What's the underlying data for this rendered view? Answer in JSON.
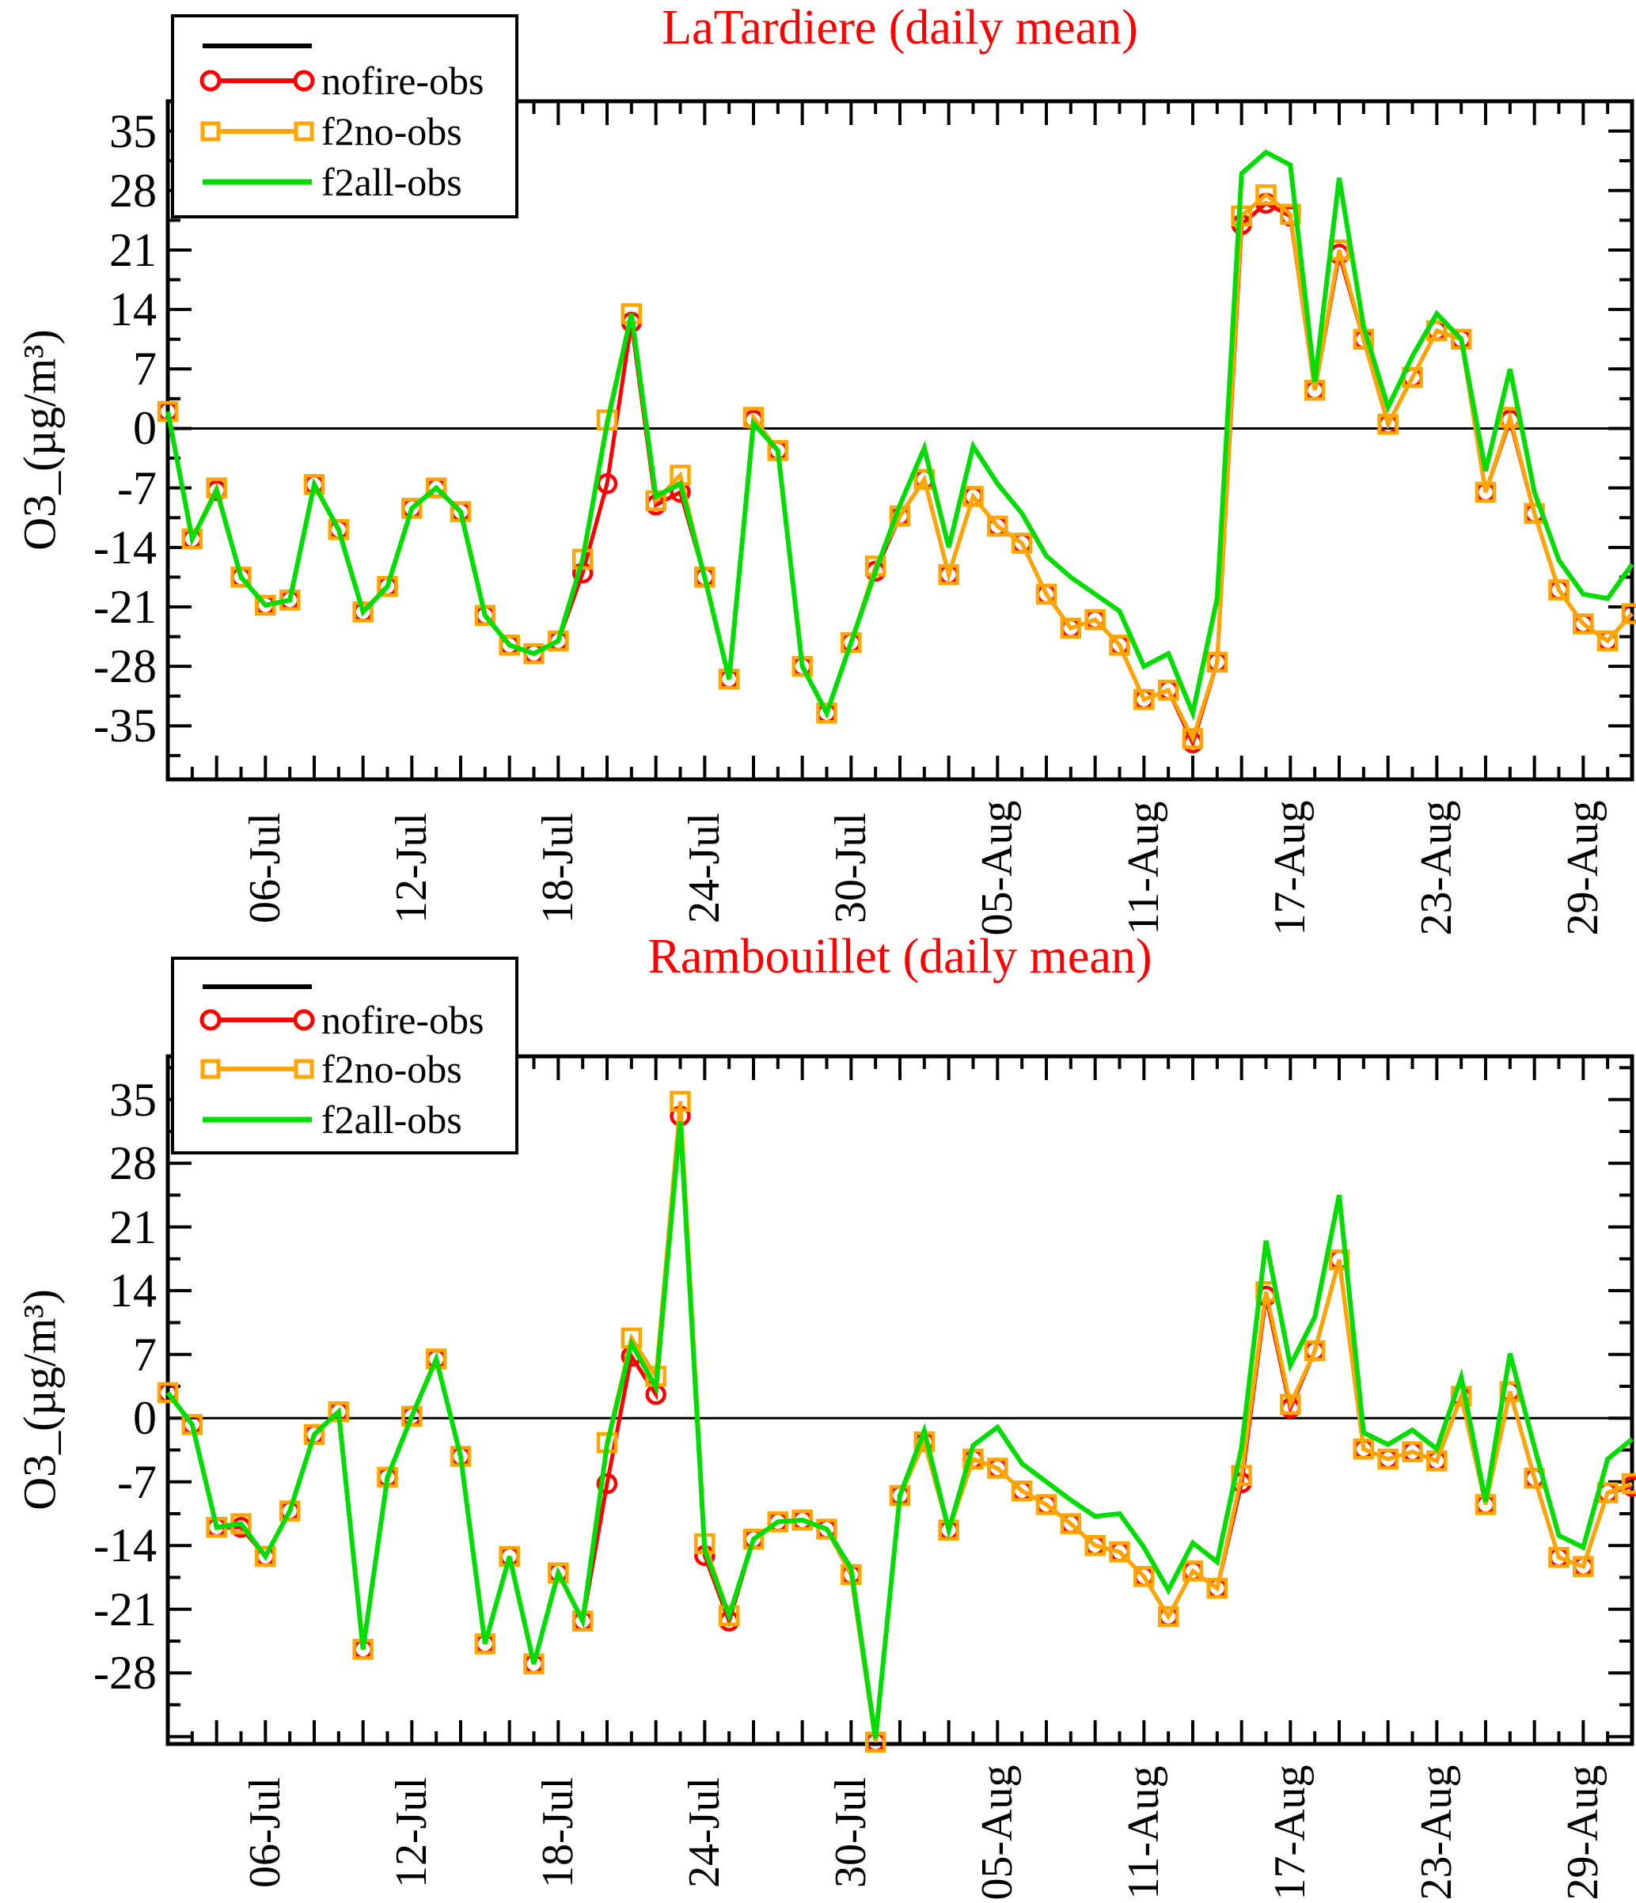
{
  "colors": {
    "nofire": "#ff0000",
    "f2no": "#ffa500",
    "f2all": "#00dd00",
    "axis": "#000000",
    "title": "#ff0000"
  },
  "legend": {
    "items": [
      "",
      "nofire-obs",
      "f2no-obs",
      "f2all-obs"
    ]
  },
  "dates": [
    "02-Jul",
    "03-Jul",
    "04-Jul",
    "05-Jul",
    "06-Jul",
    "07-Jul",
    "08-Jul",
    "09-Jul",
    "10-Jul",
    "11-Jul",
    "12-Jul",
    "13-Jul",
    "14-Jul",
    "15-Jul",
    "16-Jul",
    "17-Jul",
    "18-Jul",
    "19-Jul",
    "20-Jul",
    "21-Jul",
    "22-Jul",
    "23-Jul",
    "24-Jul",
    "25-Jul",
    "26-Jul",
    "27-Jul",
    "28-Jul",
    "29-Jul",
    "30-Jul",
    "31-Jul",
    "01-Aug",
    "02-Aug",
    "03-Aug",
    "04-Aug",
    "05-Aug",
    "06-Aug",
    "07-Aug",
    "08-Aug",
    "09-Aug",
    "10-Aug",
    "11-Aug",
    "12-Aug",
    "13-Aug",
    "14-Aug",
    "15-Aug",
    "16-Aug",
    "17-Aug",
    "18-Aug",
    "19-Aug",
    "20-Aug",
    "21-Aug",
    "22-Aug",
    "23-Aug",
    "24-Aug",
    "25-Aug",
    "26-Aug",
    "27-Aug",
    "28-Aug",
    "29-Aug",
    "30-Aug",
    "31-Aug"
  ],
  "chart_data": [
    {
      "type": "line",
      "title": "LaTardiere (daily mean)",
      "ylabel": "O3_(µg/m³)",
      "ylim": [
        -41.3,
        38.5
      ],
      "grid": false,
      "legend_position": "top-left",
      "ytick_values": [
        35,
        28,
        21,
        14,
        7,
        0,
        -7,
        -14,
        -21,
        -28,
        -35
      ],
      "ytick_labels": [
        "35",
        "28",
        "21",
        "14",
        "7",
        "0",
        "-7",
        "-14",
        "-21",
        "-28",
        "-35"
      ],
      "xtick_labels": [
        "06-Jul",
        "12-Jul",
        "18-Jul",
        "24-Jul",
        "30-Jul",
        "05-Aug",
        "11-Aug",
        "17-Aug",
        "23-Aug",
        "29-Aug"
      ],
      "xtick_indices": [
        4,
        10,
        16,
        22,
        28,
        34,
        40,
        46,
        52,
        58
      ],
      "series": [
        {
          "name": "nofire-obs",
          "color": "#ff0000",
          "marker": "circle",
          "values": [
            2,
            -13,
            -7.3,
            -17.5,
            -20.8,
            -20.2,
            -6.6,
            -11.9,
            -21.6,
            -18.6,
            -9.4,
            -7,
            -9.8,
            -22,
            -25.5,
            -26.5,
            -25,
            -17,
            -6.5,
            12.5,
            -9,
            -7.5,
            -17.5,
            -29.5,
            1,
            -2.6,
            -28,
            -33.5,
            -25.2,
            -16.8,
            -10.3,
            -6,
            -17.2,
            -8,
            -11.5,
            -13.5,
            -19.5,
            -23.5,
            -22.5,
            -25.5,
            -31.9,
            -30.8,
            -37,
            -27.5,
            24,
            26.5,
            25,
            4.5,
            20.5,
            10.5,
            0.5,
            6,
            11.5,
            10.5,
            -7.5,
            1,
            -10,
            -19,
            -23,
            -25,
            -21.8
          ]
        },
        {
          "name": "f2no-obs",
          "color": "#ffa500",
          "marker": "square",
          "values": [
            2,
            -13,
            -7,
            -17.5,
            -20.8,
            -20.2,
            -6.6,
            -11.9,
            -21.6,
            -18.6,
            -9.4,
            -7,
            -9.8,
            -22,
            -25.5,
            -26.5,
            -25,
            -15.4,
            1,
            13.5,
            -8.5,
            -5.5,
            -17.5,
            -29.5,
            1.3,
            -2.6,
            -28,
            -33.5,
            -25.2,
            -16.2,
            -10.3,
            -6,
            -17.2,
            -8,
            -11.5,
            -13.5,
            -19.5,
            -23.5,
            -22.5,
            -25.5,
            -31.9,
            -30.8,
            -36.5,
            -27.5,
            25,
            27.5,
            25.2,
            4.5,
            21,
            10.5,
            0.5,
            6,
            11.5,
            10.5,
            -7.5,
            1.3,
            -10,
            -19,
            -23,
            -25,
            -21.8
          ]
        },
        {
          "name": "f2all-obs",
          "color": "#00dd00",
          "marker": "none",
          "values": [
            2,
            -13,
            -7.3,
            -17.5,
            -20.8,
            -20.2,
            -6.6,
            -11.9,
            -21.6,
            -18.6,
            -9.4,
            -7,
            -9.8,
            -22,
            -25.5,
            -26.5,
            -25,
            -15.4,
            0.5,
            13.5,
            -8,
            -6.5,
            -17.5,
            -29.5,
            0.6,
            -2.6,
            -28,
            -33.5,
            -25.2,
            -16.8,
            -9,
            -2.3,
            -14,
            -2.1,
            -6.5,
            -10,
            -15,
            -17.5,
            -19.5,
            -21.5,
            -28,
            -26.5,
            -33.5,
            -20,
            30,
            32.5,
            31,
            5.5,
            29.5,
            12,
            2.5,
            8.5,
            13.5,
            10.5,
            -5,
            7,
            -7.5,
            -15.5,
            -19.5,
            -20,
            -16
          ]
        }
      ]
    },
    {
      "type": "line",
      "title": "Rambouillet (daily mean)",
      "ylabel": "O3_(µg/m³)",
      "ylim": [
        -35.8,
        39.75
      ],
      "grid": false,
      "legend_position": "top-left",
      "ytick_values": [
        35,
        28,
        21,
        14,
        7,
        0,
        -7,
        -14,
        -21,
        -28
      ],
      "ytick_labels": [
        "35",
        "28",
        "21",
        "14",
        "7",
        "0",
        "-7",
        "-14",
        "-21",
        "-28"
      ],
      "xtick_labels": [
        "06-Jul",
        "12-Jul",
        "18-Jul",
        "24-Jul",
        "30-Jul",
        "05-Aug",
        "11-Aug",
        "17-Aug",
        "23-Aug",
        "29-Aug"
      ],
      "xtick_indices": [
        4,
        10,
        16,
        22,
        28,
        34,
        40,
        46,
        52,
        58
      ],
      "series": [
        {
          "name": "nofire-obs",
          "color": "#ff0000",
          "marker": "circle",
          "values": [
            2.8,
            -0.7,
            -12,
            -12,
            -15.2,
            -10.2,
            -1.8,
            0.7,
            -25.4,
            -6.5,
            0.2,
            6.5,
            -4.2,
            -24.8,
            -15.2,
            -27,
            -17,
            -22.3,
            -7.2,
            6.8,
            2.6,
            33.2,
            -15.1,
            -22.3,
            -13.3,
            -11.4,
            -11.2,
            -12.2,
            -17.2,
            -35.6,
            -8.5,
            -2.6,
            -12.3,
            -4.5,
            -5.5,
            -8,
            -9.5,
            -11.6,
            -14,
            -14.7,
            -17.4,
            -21.8,
            -16.8,
            -18.7,
            -7.1,
            13.4,
            1.1,
            7.4,
            17.4,
            -3.4,
            -4.5,
            -3.7,
            -4.7,
            2.4,
            -9.5,
            2.9,
            -6.6,
            -15.3,
            -16.3,
            -8.2,
            -7.5
          ]
        },
        {
          "name": "f2no-obs",
          "color": "#ffa500",
          "marker": "square",
          "values": [
            2.8,
            -0.7,
            -12,
            -11.6,
            -15.2,
            -10.2,
            -1.8,
            0.7,
            -25.4,
            -6.5,
            0.2,
            6.5,
            -4.2,
            -24.8,
            -15.2,
            -27,
            -17,
            -22.3,
            -2.7,
            8.8,
            4.6,
            34.8,
            -13.8,
            -21.7,
            -13.3,
            -11.4,
            -11.2,
            -12.2,
            -17.2,
            -35.6,
            -8.5,
            -2.6,
            -12.3,
            -4.5,
            -5.5,
            -8,
            -9.5,
            -11.6,
            -14,
            -14.7,
            -17.4,
            -21.8,
            -16.8,
            -18.7,
            -6.3,
            13.9,
            1.5,
            7.4,
            17.4,
            -3.4,
            -4.5,
            -3.7,
            -4.7,
            2.4,
            -9.5,
            2.9,
            -6.6,
            -15.3,
            -16.3,
            -8.2,
            -7.2
          ]
        },
        {
          "name": "f2all-obs",
          "color": "#00dd00",
          "marker": "none",
          "values": [
            2.8,
            -0.7,
            -12,
            -11.6,
            -15.2,
            -10.2,
            -1.8,
            0.7,
            -25.4,
            -6.5,
            0.2,
            6.5,
            -4.2,
            -24.8,
            -15.2,
            -27,
            -17,
            -22.3,
            -2.9,
            8.2,
            3.4,
            32.6,
            -14.5,
            -21.7,
            -13.3,
            -11.4,
            -11.2,
            -12.2,
            -16.5,
            -35.2,
            -8.5,
            -1.4,
            -12.3,
            -3,
            -1,
            -5,
            -7,
            -9,
            -10.8,
            -10.5,
            -14.2,
            -18.9,
            -13.7,
            -15.8,
            -3.2,
            19.5,
            5.8,
            11.1,
            24.5,
            -1.6,
            -2.9,
            -1.3,
            -3.4,
            4.5,
            -9.2,
            7.1,
            -3.2,
            -12.9,
            -14.2,
            -4.5,
            -2.3
          ]
        }
      ]
    }
  ]
}
